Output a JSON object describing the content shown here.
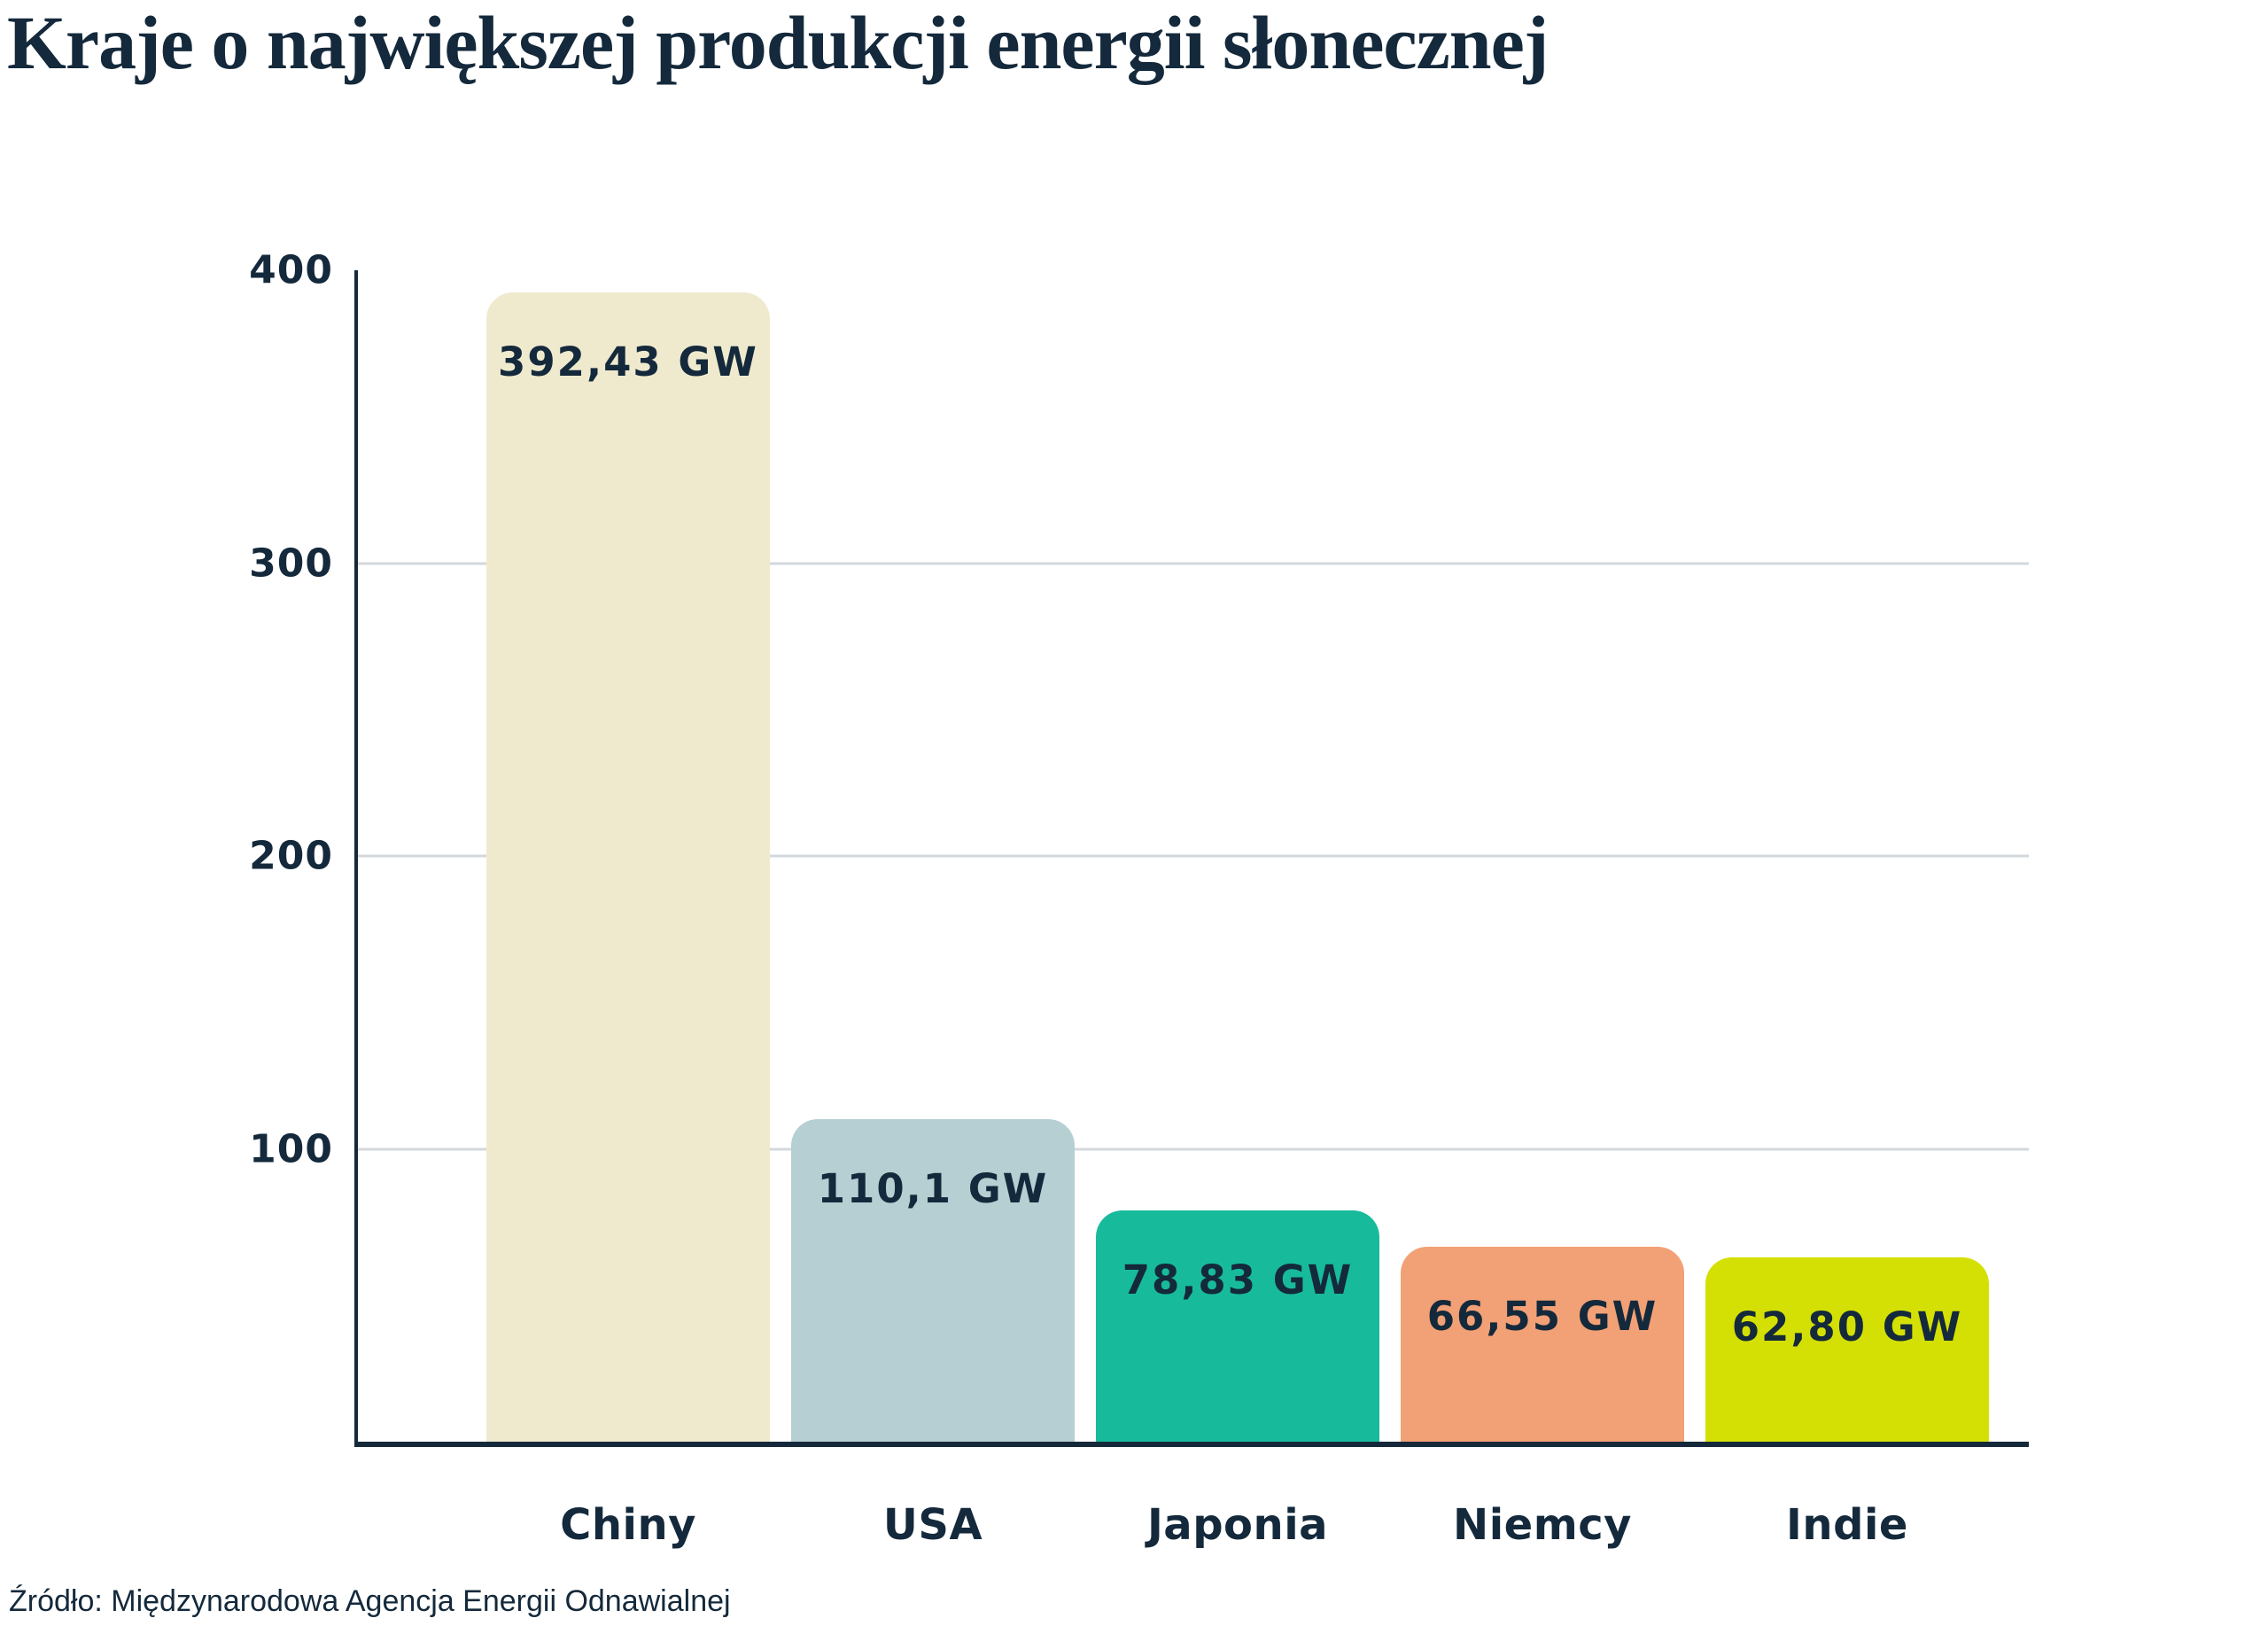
{
  "title": "Kraje o największej produkcji energii słonecznej",
  "source": "Źródło: Międzynarodowa Agencja Energii Odnawialnej",
  "colors": {
    "background": "#FFFFFF",
    "text": "#14293B",
    "axis": "#16293A",
    "gridline": "#D3D8DC"
  },
  "chart_data": {
    "type": "bar",
    "title": "Kraje o największej produkcji energii słonecznej",
    "categories": [
      "Chiny",
      "USA",
      "Japonia",
      "Niemcy",
      "Indie"
    ],
    "values": [
      392.43,
      110.1,
      78.83,
      66.55,
      62.8
    ],
    "value_labels": [
      "392,43 GW",
      "110,1 GW",
      "78,83 GW",
      "66,55 GW",
      "62,80 GW"
    ],
    "bar_colors": [
      "#EFEACE",
      "#B5CFD2",
      "#17BB9B",
      "#F2A075",
      "#D4E004"
    ],
    "xlabel": "",
    "ylabel": "",
    "unit": "GW",
    "ylim": [
      0,
      400
    ],
    "yticks": [
      400,
      300,
      200,
      100
    ],
    "gridlines": [
      300,
      200,
      100
    ],
    "grid": true,
    "legend": false
  }
}
